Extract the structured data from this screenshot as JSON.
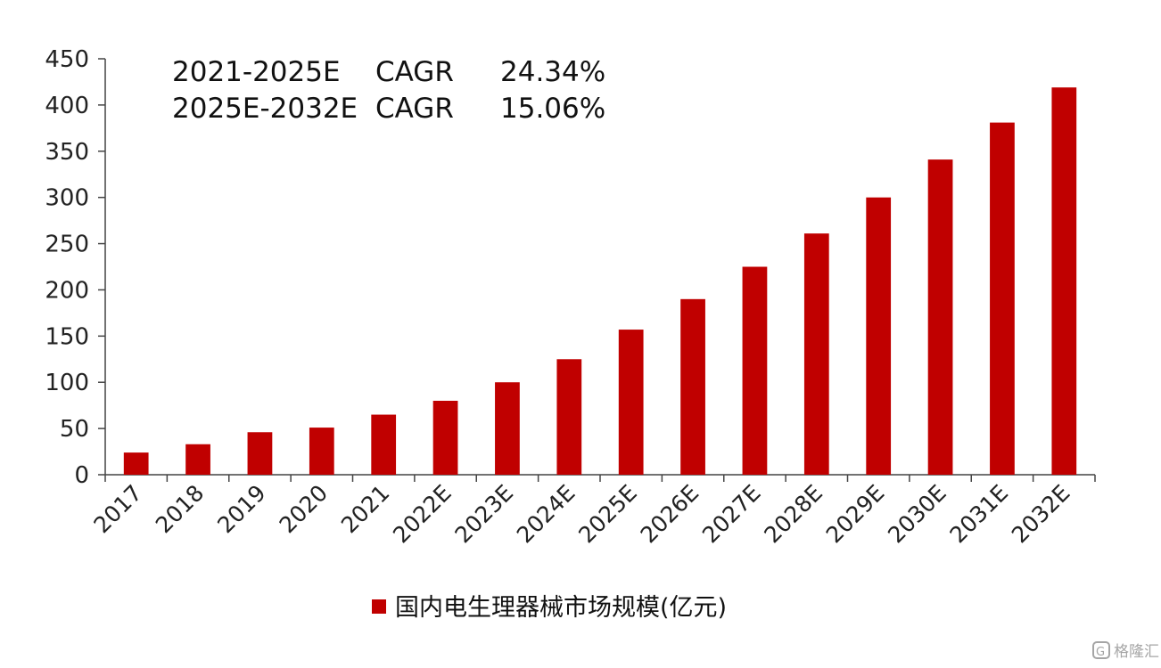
{
  "chart_data": {
    "type": "bar",
    "categories": [
      "2017",
      "2018",
      "2019",
      "2020",
      "2021",
      "2022E",
      "2023E",
      "2024E",
      "2025E",
      "2026E",
      "2027E",
      "2028E",
      "2029E",
      "2030E",
      "2031E",
      "2032E"
    ],
    "series": [
      {
        "name": "国内电生理器械市场规模(亿元)",
        "values": [
          24,
          33,
          46,
          51,
          65,
          80,
          100,
          125,
          157,
          190,
          225,
          261,
          300,
          341,
          381,
          419
        ],
        "color": "#c00000"
      }
    ],
    "ylim": [
      0,
      450
    ],
    "yticks": [
      0,
      50,
      100,
      150,
      200,
      250,
      300,
      350,
      400,
      450
    ],
    "xlabel": "",
    "ylabel": "",
    "grid": false,
    "legend_position": "bottom-center",
    "annotations": [
      {
        "period": "2021-2025E",
        "metric": "CAGR",
        "value": "24.34%"
      },
      {
        "period": "2025E-2032E",
        "metric": "CAGR",
        "value": "15.06%"
      }
    ]
  },
  "watermark": {
    "icon": "gelonghui-logo-icon",
    "text": "格隆汇"
  }
}
